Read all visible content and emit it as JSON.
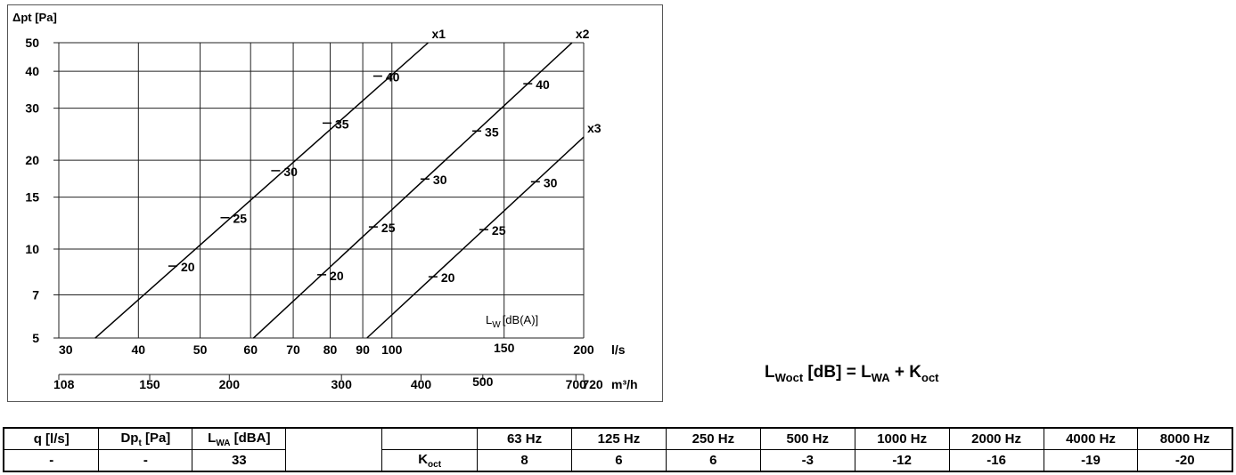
{
  "chart_data": {
    "type": "line",
    "ylabel": "Δpt [Pa]",
    "xlabel": "l/s",
    "x2label": "m³/h",
    "xscale": "log",
    "yscale": "log",
    "xlim": [
      30,
      200
    ],
    "ylim": [
      5,
      50
    ],
    "x_ticks": [
      30,
      40,
      50,
      60,
      70,
      80,
      90,
      100,
      150,
      200
    ],
    "y_ticks": [
      5,
      7,
      10,
      15,
      20,
      30,
      40,
      50
    ],
    "x2_ticks": [
      108,
      150,
      200,
      300,
      400,
      500,
      700,
      720
    ],
    "grid": true,
    "lw_label": "[dB(A)]",
    "lw_label_main": "L",
    "lw_label_sub": "W",
    "series": [
      {
        "name": "x1",
        "k": 0.00427,
        "x": [
          34.2,
          114
        ],
        "marks": [
          {
            "lw": "20",
            "q": 45.3
          },
          {
            "lw": "25",
            "q": 54.7
          },
          {
            "lw": "30",
            "q": 65.7
          },
          {
            "lw": "35",
            "q": 79.1
          },
          {
            "lw": "40",
            "q": 95.0
          }
        ]
      },
      {
        "name": "x2",
        "k": 0.00136,
        "x": [
          60.6,
          191.7
        ],
        "marks": [
          {
            "lw": "20",
            "q": 77.6
          },
          {
            "lw": "25",
            "q": 93.5
          },
          {
            "lw": "30",
            "q": 112.7
          },
          {
            "lw": "35",
            "q": 135.9
          },
          {
            "lw": "40",
            "q": 163.4
          }
        ]
      },
      {
        "name": "x3",
        "k": 0.000599,
        "x": [
          91.4,
          200
        ],
        "marks": [
          {
            "lw": "20",
            "q": 116
          },
          {
            "lw": "25",
            "q": 139.4
          },
          {
            "lw": "30",
            "q": 168
          }
        ]
      }
    ]
  },
  "formula": {
    "l": "L",
    "l_sub": "Woct",
    "mid": " [dB] = L",
    "mid_sub": "WA",
    "plus": " + K",
    "k_sub": "oct"
  },
  "table": {
    "h1": "q [l/s]",
    "h2": "Dp",
    "h2_sub": "t",
    "h2_rest": " [Pa]",
    "h3": "L",
    "h3_sub": "WA",
    "h3_rest": " [dBA]",
    "v1": "-",
    "v2": "-",
    "v3": "33",
    "k_label": "K",
    "k_sub": "oct",
    "bands": [
      "63 Hz",
      "125 Hz",
      "250 Hz",
      "500 Hz",
      "1000 Hz",
      "2000 Hz",
      "4000 Hz",
      "8000 Hz"
    ],
    "koct": [
      "8",
      "6",
      "6",
      "-3",
      "-12",
      "-16",
      "-19",
      "-20"
    ]
  }
}
